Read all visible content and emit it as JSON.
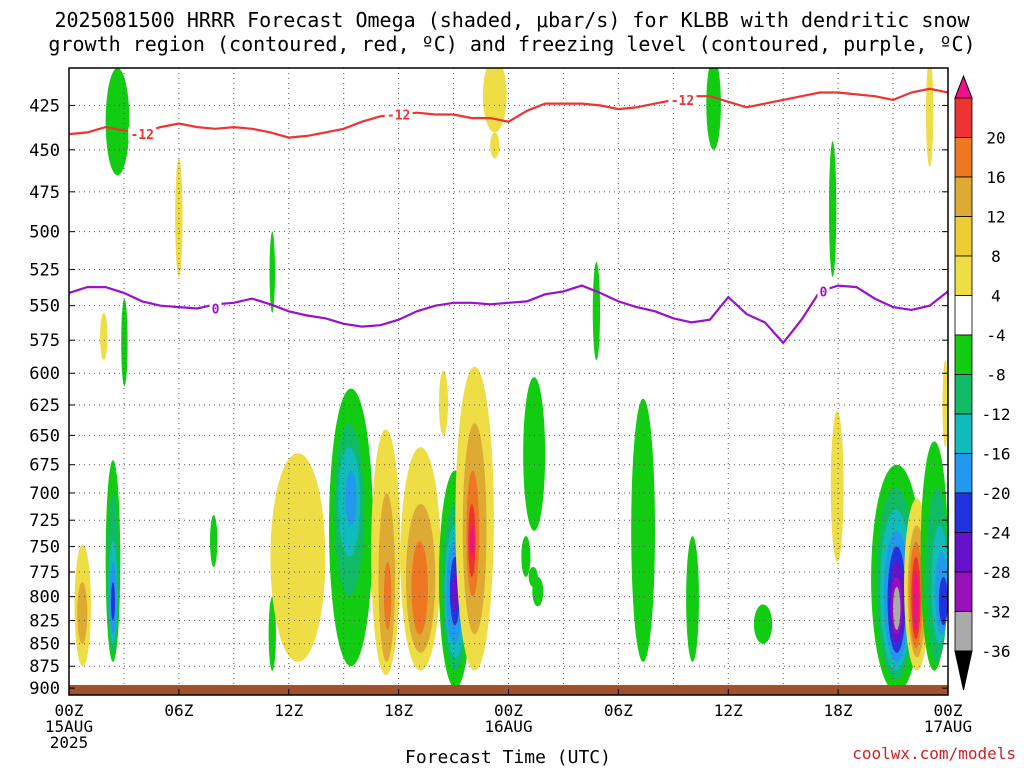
{
  "title": "2025081500 HRRR Forecast Omega (shaded, μbar/s) for KLBB with dendritic snow\ngrowth region (contoured, red, ºC) and freezing level (contoured, purple, ºC)",
  "credit": "coolwx.com/models",
  "chart_data": {
    "type": "heatmap",
    "xlabel": "Forecast Time (UTC)",
    "ylabel": "",
    "x_range_hours": [
      0,
      48
    ],
    "y_range_hpa": [
      405,
      908
    ],
    "y_scale": "log-pressure",
    "y_ticks": [
      425,
      450,
      475,
      500,
      525,
      550,
      575,
      600,
      625,
      650,
      675,
      700,
      725,
      750,
      775,
      800,
      825,
      850,
      875,
      900
    ],
    "x_ticks": [
      {
        "hour": 0,
        "label": "00Z",
        "sub1": "15AUG",
        "sub2": "2025"
      },
      {
        "hour": 6,
        "label": "06Z",
        "sub1": "",
        "sub2": ""
      },
      {
        "hour": 12,
        "label": "12Z",
        "sub1": "",
        "sub2": ""
      },
      {
        "hour": 18,
        "label": "18Z",
        "sub1": "",
        "sub2": ""
      },
      {
        "hour": 24,
        "label": "00Z",
        "sub1": "16AUG",
        "sub2": ""
      },
      {
        "hour": 30,
        "label": "06Z",
        "sub1": "",
        "sub2": ""
      },
      {
        "hour": 36,
        "label": "12Z",
        "sub1": "",
        "sub2": ""
      },
      {
        "hour": 42,
        "label": "18Z",
        "sub1": "",
        "sub2": ""
      },
      {
        "hour": 48,
        "label": "00Z",
        "sub1": "17AUG",
        "sub2": ""
      }
    ],
    "grid": true,
    "colorbar": {
      "labels": [
        "20",
        "16",
        "12",
        "8",
        "4",
        "-4",
        "-8",
        "-12",
        "-16",
        "-20",
        "-24",
        "-28",
        "-32",
        "-36"
      ],
      "colors": [
        "#ee1188",
        "#ee3333",
        "#ee7722",
        "#ddaa33",
        "#eecc33",
        "#eedd44",
        "#ffffff",
        "#11cc11",
        "#11bb66",
        "#11bbbb",
        "#2299ee",
        "#2233dd",
        "#6611cc",
        "#9911bb",
        "#aaaaaa",
        "#000000"
      ]
    },
    "series": [
      {
        "name": "-12",
        "color": "#ee3333",
        "x": [
          0,
          1,
          2,
          3,
          4,
          5,
          6,
          7,
          8,
          9,
          10,
          11,
          12,
          13,
          14,
          15,
          16,
          17,
          18,
          19,
          20,
          21,
          22,
          23,
          24,
          25,
          26,
          27,
          28,
          29,
          30,
          31,
          32,
          33,
          34,
          35,
          36,
          37,
          38,
          39,
          40,
          41,
          42,
          43,
          44,
          45,
          46,
          47,
          48
        ],
        "y": [
          441,
          440,
          437,
          439,
          440,
          437,
          435,
          437,
          438,
          437,
          438,
          440,
          443,
          442,
          440,
          438,
          434,
          431,
          430,
          429,
          430,
          430,
          432,
          432,
          434,
          428,
          424,
          424,
          424,
          425,
          427,
          426,
          424,
          422,
          420,
          420,
          423,
          426,
          424,
          422,
          420,
          418,
          418,
          419,
          420,
          422,
          418,
          416,
          418
        ]
      },
      {
        "name": "0",
        "color": "#9911cc",
        "x": [
          0,
          1,
          2,
          3,
          4,
          5,
          6,
          7,
          8,
          9,
          10,
          11,
          12,
          13,
          14,
          15,
          16,
          17,
          18,
          19,
          20,
          21,
          22,
          23,
          24,
          25,
          26,
          27,
          28,
          29,
          30,
          31,
          32,
          33,
          34,
          35,
          36,
          37,
          38,
          39,
          40,
          41,
          42,
          43,
          44,
          45,
          46,
          47,
          48
        ],
        "y": [
          541,
          537,
          537,
          541,
          547,
          550,
          551,
          552,
          549,
          548,
          545,
          549,
          554,
          557,
          559,
          563,
          565,
          564,
          560,
          554,
          550,
          548,
          548,
          549,
          548,
          547,
          542,
          540,
          536,
          541,
          547,
          551,
          554,
          559,
          562,
          560,
          544,
          556,
          562,
          577,
          560,
          540,
          536,
          537,
          545,
          551,
          553,
          550,
          540
        ]
      }
    ],
    "contour_labels": [
      {
        "text": "-12",
        "x": 4.0,
        "y": 441,
        "color": "#ee3333"
      },
      {
        "text": "-12",
        "x": 18.0,
        "y": 430,
        "color": "#ee3333"
      },
      {
        "text": "-12",
        "x": 33.5,
        "y": 422,
        "color": "#ee3333"
      },
      {
        "text": "0",
        "x": 8.0,
        "y": 552,
        "color": "#9911cc"
      },
      {
        "text": "0",
        "x": 41.2,
        "y": 540,
        "color": "#9911cc"
      }
    ],
    "regions": [
      {
        "level": "-4",
        "x": [
          2.0,
          2.8
        ],
        "y": [
          671,
          870
        ]
      },
      {
        "level": "-8",
        "x": [
          2.1,
          2.7
        ],
        "y": [
          700,
          860
        ]
      },
      {
        "level": "-12",
        "x": [
          2.15,
          2.65
        ],
        "y": [
          745,
          850
        ]
      },
      {
        "level": "-16",
        "x": [
          2.2,
          2.6
        ],
        "y": [
          765,
          840
        ]
      },
      {
        "level": "-20",
        "x": [
          2.3,
          2.5
        ],
        "y": [
          785,
          825
        ]
      },
      {
        "level": "4",
        "x": [
          0.3,
          1.2
        ],
        "y": [
          748,
          875
        ]
      },
      {
        "level": "8",
        "x": [
          0.45,
          1.0
        ],
        "y": [
          785,
          850
        ]
      },
      {
        "level": "-4",
        "x": [
          2.0,
          3.3
        ],
        "y": [
          405,
          465
        ]
      },
      {
        "level": "-4",
        "x": [
          2.85,
          3.2
        ],
        "y": [
          545,
          610
        ]
      },
      {
        "level": "4",
        "x": [
          1.7,
          2.1
        ],
        "y": [
          555,
          590
        ]
      },
      {
        "level": "4",
        "x": [
          5.8,
          6.2
        ],
        "y": [
          455,
          530
        ]
      },
      {
        "level": "-4",
        "x": [
          7.7,
          8.1
        ],
        "y": [
          720,
          770
        ]
      },
      {
        "level": "-4",
        "x": [
          10.9,
          11.3
        ],
        "y": [
          800,
          880
        ]
      },
      {
        "level": "-4",
        "x": [
          10.95,
          11.25
        ],
        "y": [
          500,
          555
        ]
      },
      {
        "level": "4",
        "x": [
          11.2,
          12.0
        ],
        "y": [
          695,
          830
        ]
      },
      {
        "level": "4",
        "x": [
          11.0,
          14.0
        ],
        "y": [
          665,
          870
        ]
      },
      {
        "level": "-4",
        "x": [
          14.2,
          16.6
        ],
        "y": [
          612,
          875
        ]
      },
      {
        "level": "-8",
        "x": [
          14.5,
          16.1
        ],
        "y": [
          640,
          800
        ]
      },
      {
        "level": "-12",
        "x": [
          14.7,
          15.9
        ],
        "y": [
          660,
          760
        ]
      },
      {
        "level": "-16",
        "x": [
          15.1,
          15.7
        ],
        "y": [
          680,
          730
        ]
      },
      {
        "level": "4",
        "x": [
          16.5,
          18.1
        ],
        "y": [
          645,
          885
        ]
      },
      {
        "level": "8",
        "x": [
          16.9,
          17.8
        ],
        "y": [
          700,
          870
        ]
      },
      {
        "level": "12",
        "x": [
          17.2,
          17.6
        ],
        "y": [
          765,
          835
        ]
      },
      {
        "level": "4",
        "x": [
          18.1,
          20.3
        ],
        "y": [
          660,
          880
        ]
      },
      {
        "level": "8",
        "x": [
          18.4,
          20.0
        ],
        "y": [
          710,
          860
        ]
      },
      {
        "level": "12",
        "x": [
          18.7,
          19.6
        ],
        "y": [
          745,
          840
        ]
      },
      {
        "level": "4",
        "x": [
          20.2,
          20.7
        ],
        "y": [
          598,
          650
        ]
      },
      {
        "level": "-4",
        "x": [
          20.2,
          22.0
        ],
        "y": [
          680,
          900
        ]
      },
      {
        "level": "-8",
        "x": [
          20.4,
          21.8
        ],
        "y": [
          710,
          880
        ]
      },
      {
        "level": "-12",
        "x": [
          20.5,
          21.7
        ],
        "y": [
          730,
          865
        ]
      },
      {
        "level": "-16",
        "x": [
          20.6,
          21.5
        ],
        "y": [
          745,
          850
        ]
      },
      {
        "level": "-20",
        "x": [
          20.8,
          21.35
        ],
        "y": [
          760,
          830
        ]
      },
      {
        "level": "-24",
        "x": [
          20.9,
          21.25
        ],
        "y": [
          775,
          815
        ]
      },
      {
        "level": "4",
        "x": [
          21.1,
          23.2
        ],
        "y": [
          595,
          880
        ]
      },
      {
        "level": "8",
        "x": [
          21.5,
          22.8
        ],
        "y": [
          640,
          840
        ]
      },
      {
        "level": "12",
        "x": [
          21.7,
          22.4
        ],
        "y": [
          680,
          800
        ]
      },
      {
        "level": "16",
        "x": [
          21.8,
          22.2
        ],
        "y": [
          710,
          780
        ]
      },
      {
        "level": "20",
        "x": [
          21.9,
          22.15
        ],
        "y": [
          730,
          760
        ]
      },
      {
        "level": "4",
        "x": [
          22.6,
          23.9
        ],
        "y": [
          400,
          440
        ]
      },
      {
        "level": "4",
        "x": [
          23.0,
          23.5
        ],
        "y": [
          440,
          455
        ]
      },
      {
        "level": "-4",
        "x": [
          24.8,
          26.0
        ],
        "y": [
          603,
          735
        ]
      },
      {
        "level": "-4",
        "x": [
          24.7,
          25.2
        ],
        "y": [
          740,
          780
        ]
      },
      {
        "level": "-4",
        "x": [
          25.1,
          25.6
        ],
        "y": [
          770,
          790
        ]
      },
      {
        "level": "-4",
        "x": [
          25.3,
          25.9
        ],
        "y": [
          780,
          810
        ]
      },
      {
        "level": "-4",
        "x": [
          28.6,
          29.0
        ],
        "y": [
          520,
          590
        ]
      },
      {
        "level": "-4",
        "x": [
          30.7,
          32.0
        ],
        "y": [
          620,
          870
        ]
      },
      {
        "level": "-4",
        "x": [
          33.7,
          34.4
        ],
        "y": [
          740,
          870
        ]
      },
      {
        "level": "-4",
        "x": [
          34.8,
          35.6
        ],
        "y": [
          400,
          450
        ]
      },
      {
        "level": "-4",
        "x": [
          37.4,
          38.4
        ],
        "y": [
          808,
          850
        ]
      },
      {
        "level": "4",
        "x": [
          41.6,
          42.3
        ],
        "y": [
          630,
          765
        ]
      },
      {
        "level": "-4",
        "x": [
          41.5,
          41.9
        ],
        "y": [
          445,
          530
        ]
      },
      {
        "level": "-4",
        "x": [
          43.8,
          46.6
        ],
        "y": [
          675,
          905
        ]
      },
      {
        "level": "-8",
        "x": [
          44.1,
          46.2
        ],
        "y": [
          695,
          890
        ]
      },
      {
        "level": "-12",
        "x": [
          44.3,
          46.0
        ],
        "y": [
          715,
          880
        ]
      },
      {
        "level": "-16",
        "x": [
          44.5,
          45.9
        ],
        "y": [
          735,
          870
        ]
      },
      {
        "level": "-20",
        "x": [
          44.7,
          45.7
        ],
        "y": [
          750,
          860
        ]
      },
      {
        "level": "-24",
        "x": [
          44.8,
          45.6
        ],
        "y": [
          765,
          850
        ]
      },
      {
        "level": "-28",
        "x": [
          44.9,
          45.5
        ],
        "y": [
          780,
          840
        ]
      },
      {
        "level": "-32",
        "x": [
          45.0,
          45.4
        ],
        "y": [
          790,
          835
        ]
      },
      {
        "level": "4",
        "x": [
          45.6,
          47.0
        ],
        "y": [
          705,
          880
        ]
      },
      {
        "level": "8",
        "x": [
          45.8,
          46.8
        ],
        "y": [
          730,
          865
        ]
      },
      {
        "level": "12",
        "x": [
          45.9,
          46.6
        ],
        "y": [
          745,
          855
        ]
      },
      {
        "level": "16",
        "x": [
          46.0,
          46.5
        ],
        "y": [
          760,
          845
        ]
      },
      {
        "level": "20",
        "x": [
          46.1,
          46.4
        ],
        "y": [
          775,
          835
        ]
      },
      {
        "level": "-4",
        "x": [
          46.5,
          48.0
        ],
        "y": [
          655,
          880
        ]
      },
      {
        "level": "-8",
        "x": [
          46.8,
          48.0
        ],
        "y": [
          695,
          870
        ]
      },
      {
        "level": "-12",
        "x": [
          47.1,
          48.0
        ],
        "y": [
          730,
          850
        ]
      },
      {
        "level": "-16",
        "x": [
          47.3,
          48.0
        ],
        "y": [
          755,
          840
        ]
      },
      {
        "level": "-20",
        "x": [
          47.5,
          48.0
        ],
        "y": [
          780,
          830
        ]
      },
      {
        "level": "4",
        "x": [
          47.7,
          48.0
        ],
        "y": [
          590,
          660
        ]
      },
      {
        "level": "4",
        "x": [
          46.8,
          47.2
        ],
        "y": [
          400,
          460
        ]
      }
    ]
  }
}
